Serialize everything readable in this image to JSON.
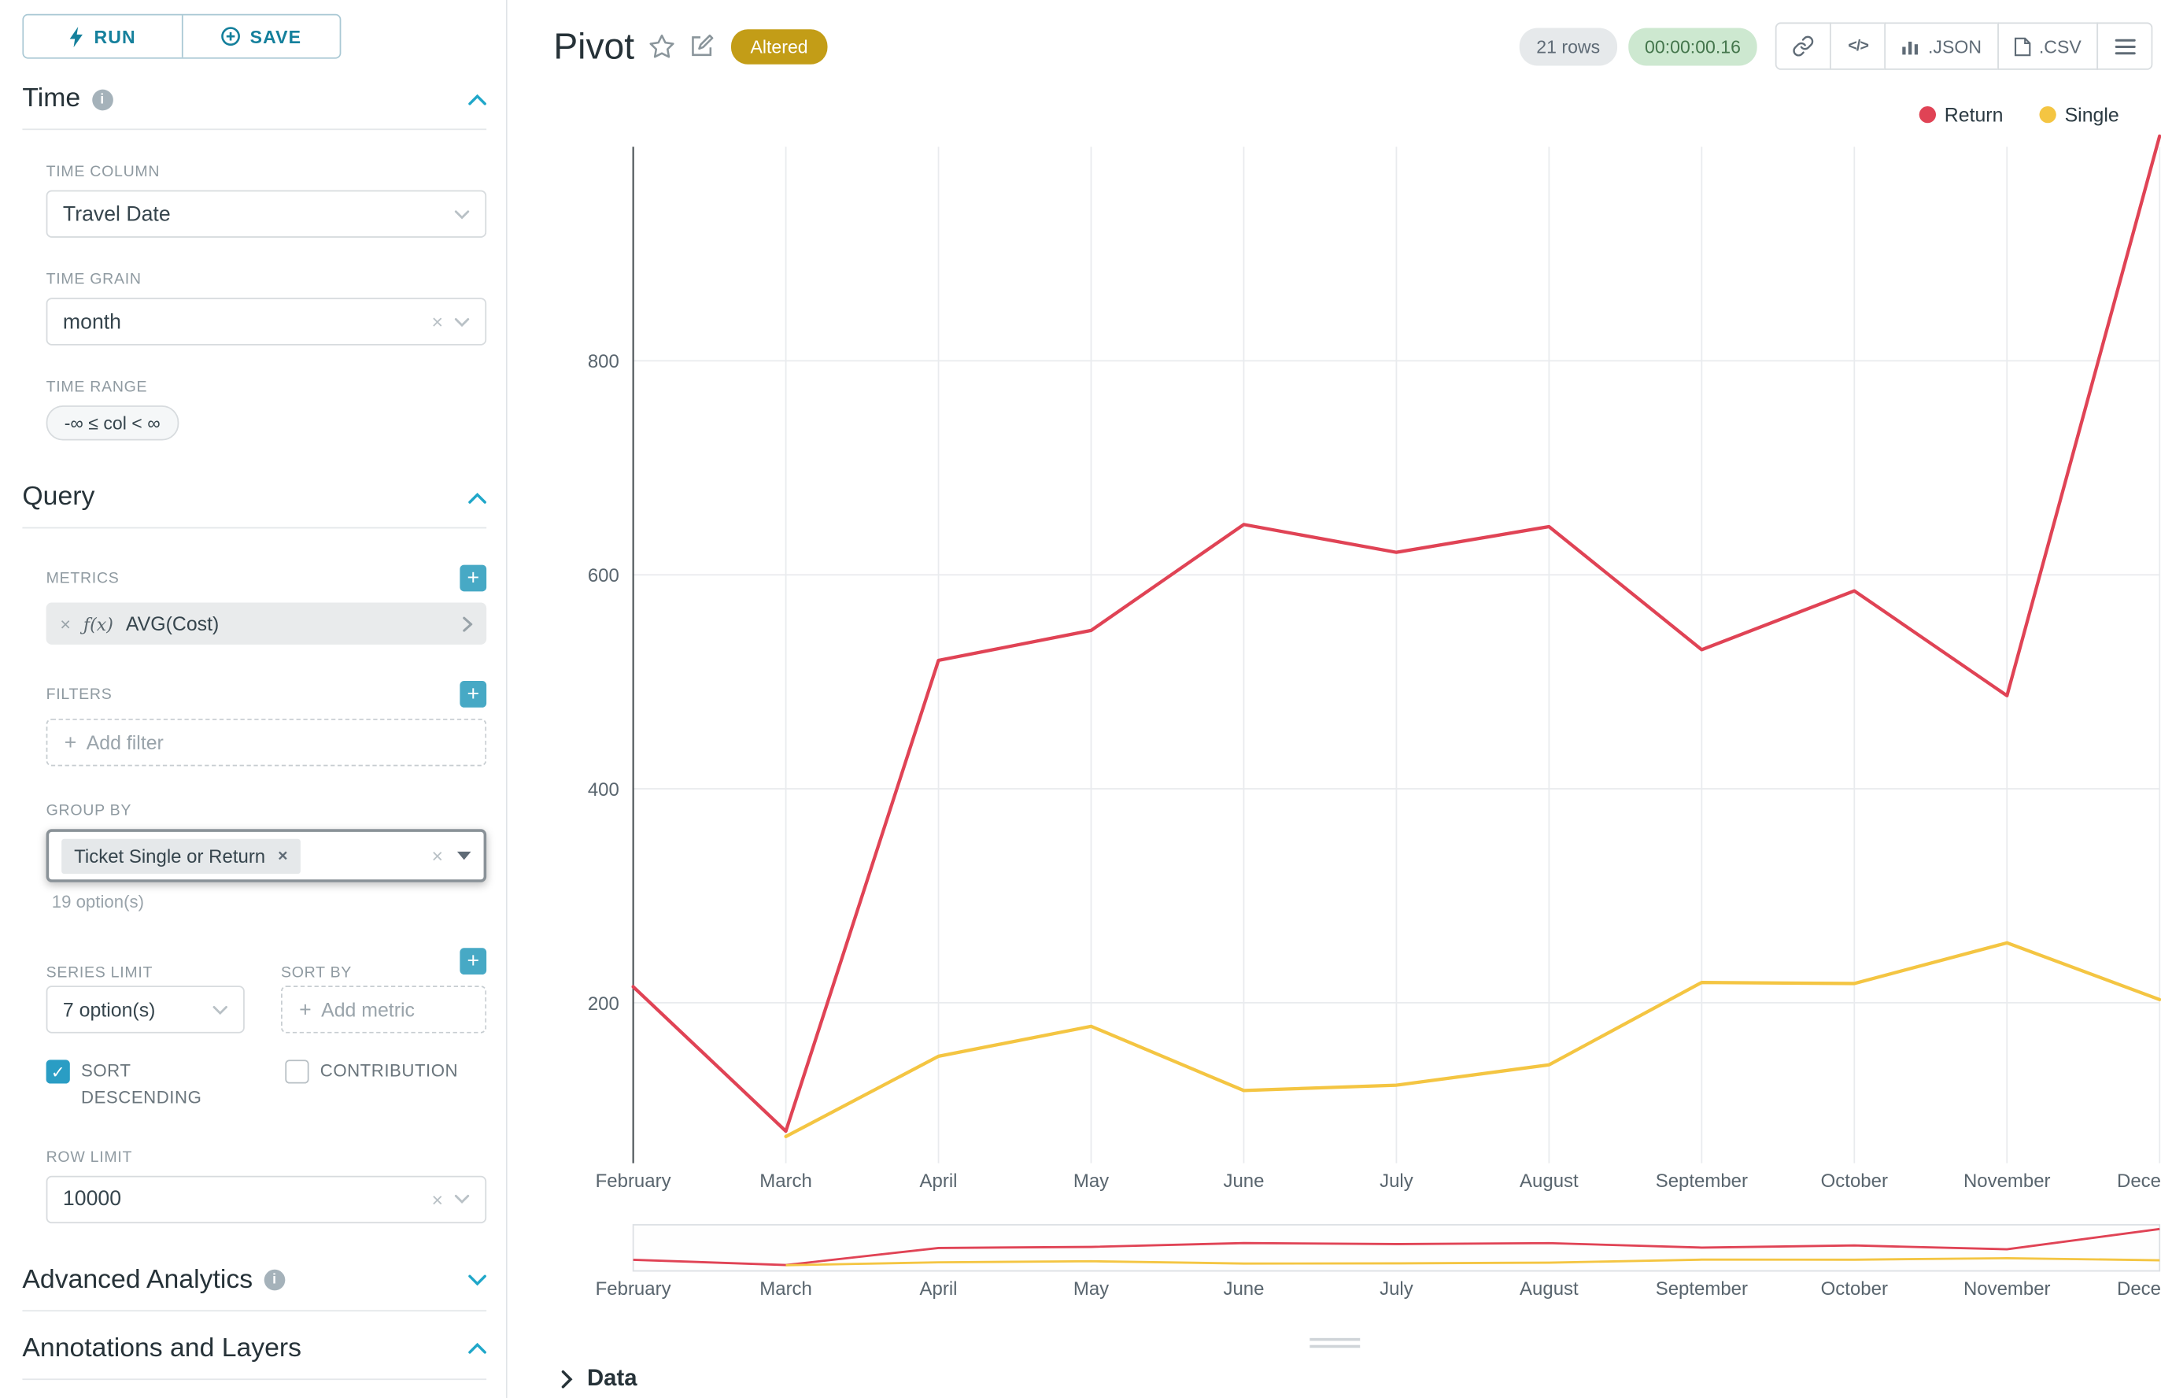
{
  "colors": {
    "accent": "#20a7c9",
    "altered_badge": "#c39d17",
    "timer_bg": "#cde8d0",
    "timer_text": "#44764c",
    "series_return": "#e04355",
    "series_single": "#f4c542"
  },
  "toolbar": {
    "run": "RUN",
    "save": "SAVE"
  },
  "time": {
    "title": "Time",
    "column_label": "TIME COLUMN",
    "column_value": "Travel Date",
    "grain_label": "TIME GRAIN",
    "grain_value": "month",
    "range_label": "TIME RANGE",
    "range_value": "-∞ ≤ col < ∞"
  },
  "query": {
    "title": "Query",
    "metrics_label": "METRICS",
    "metric_fx": "ƒ(x)",
    "metric_value": "AVG(Cost)",
    "filters_label": "FILTERS",
    "add_filter": "Add filter",
    "group_by_label": "GROUP BY",
    "group_by_tag": "Ticket Single or Return",
    "group_by_hint": "19 option(s)",
    "series_limit_label": "SERIES LIMIT",
    "series_limit_value": "7 option(s)",
    "sort_by_label": "SORT BY",
    "add_metric": "Add metric",
    "sort_descending_label": "SORT DESCENDING",
    "sort_descending_checked": true,
    "contribution_label": "CONTRIBUTION",
    "contribution_checked": false,
    "row_limit_label": "ROW LIMIT",
    "row_limit_value": "10000"
  },
  "advanced_title": "Advanced Analytics",
  "annotations_title": "Annotations and Layers",
  "header": {
    "title": "Pivot",
    "badge": "Altered",
    "rows": "21 rows",
    "timer": "00:00:00.16",
    "json": ".JSON",
    "csv": ".CSV"
  },
  "chart_data": {
    "type": "line",
    "categories": [
      "February",
      "March",
      "April",
      "May",
      "June",
      "July",
      "August",
      "September",
      "October",
      "November",
      "December"
    ],
    "x_tick_labels": [
      "February",
      "March",
      "April",
      "May",
      "June",
      "July",
      "August",
      "September",
      "October",
      "November",
      "Dece"
    ],
    "series": [
      {
        "name": "Return",
        "color": "#e04355",
        "values": [
          215,
          80,
          520,
          548,
          647,
          621,
          645,
          530,
          585,
          487,
          1010
        ]
      },
      {
        "name": "Single",
        "color": "#f4c542",
        "values": [
          null,
          75,
          150,
          178,
          118,
          123,
          142,
          219,
          218,
          256,
          203
        ]
      }
    ],
    "ylim": [
      50,
      1000
    ],
    "yticks": [
      200,
      400,
      600,
      800
    ],
    "ylabel": "",
    "xlabel": "",
    "grid": true,
    "legend_position": "top-right",
    "range_selector": true
  },
  "data_panel": {
    "title": "Data"
  }
}
